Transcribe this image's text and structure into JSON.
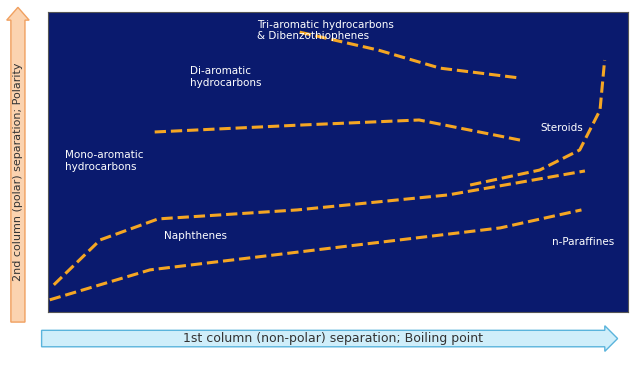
{
  "chart_data": {
    "type": "line",
    "xlabel": "1st column (non-polar) separation; Boiling point",
    "ylabel": "2nd column (polar) separation; Polarity",
    "xlim": [
      0,
      100
    ],
    "ylim": [
      0,
      100
    ],
    "tick_labels": false,
    "grid": false,
    "annotations": [
      "Tri-aromatic hydrocarbons\n& Dibenzothiophenes",
      "Di-aromatic\nhydrocarbons",
      "Mono-aromatic\nhydrocarbons",
      "Naphthenes",
      "Steroids",
      "n-Paraffines"
    ],
    "series": [
      {
        "x": [
          0.3,
          17.6,
          52,
          78,
          92
        ],
        "values": [
          4,
          14,
          22,
          28,
          34
        ],
        "color": "#f5a623",
        "line_style": "dashed"
      },
      {
        "x": [
          1,
          9,
          19,
          43,
          69,
          92.6
        ],
        "values": [
          9,
          24,
          31,
          34,
          39,
          47
        ],
        "color": "#f5a623",
        "line_style": "dashed"
      },
      {
        "x": [
          72.8,
          84.8,
          91.7,
          95.2,
          96
        ],
        "values": [
          42.3,
          47.3,
          54,
          67.3,
          84
        ],
        "color": "#f5a623",
        "line_style": "dashed"
      },
      {
        "x": [
          18.4,
          43.4,
          64,
          81.4
        ],
        "values": [
          60,
          62.3,
          64,
          57.3
        ],
        "color": "#f5a623",
        "line_style": "dashed"
      },
      {
        "x": [
          43.4,
          57,
          67.6,
          81.4
        ],
        "values": [
          93.3,
          87.3,
          81.3,
          78
        ],
        "color": "#f5a623",
        "line_style": "dashed"
      }
    ]
  }
}
